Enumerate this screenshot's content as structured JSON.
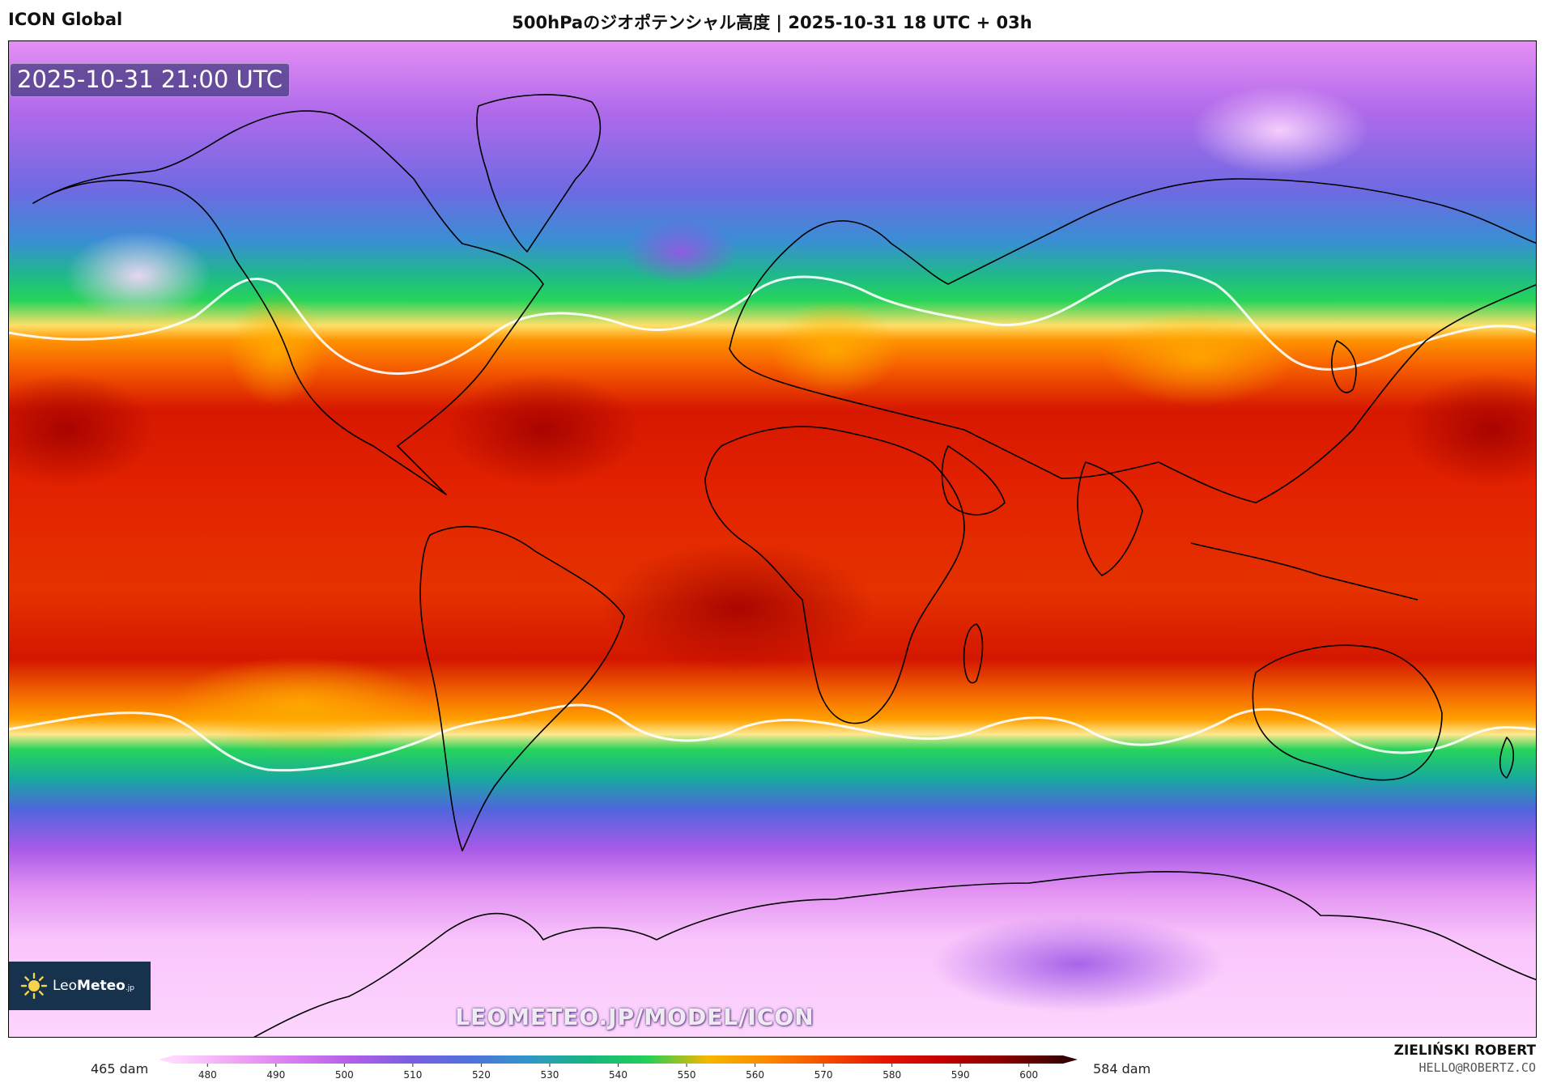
{
  "header": {
    "model_name": "ICON Global",
    "title": "500hPaのジオポテンシャル高度 | 2025-10-31 18 UTC + 03h"
  },
  "map": {
    "timestamp": "2025-10-31 21:00 UTC",
    "watermark": "LEOMETEO.JP/MODEL/ICON",
    "logo": {
      "brand_light": "Leo",
      "brand_bold": "Meteo",
      "brand_suffix": ".jp"
    }
  },
  "colorbar": {
    "min_label": "465 dam",
    "max_label": "584 dam",
    "ticks": [
      "480",
      "490",
      "500",
      "510",
      "520",
      "530",
      "540",
      "550",
      "560",
      "570",
      "580",
      "590",
      "600"
    ],
    "colors": [
      "#ffd8ff",
      "#f1a6f5",
      "#d97cf0",
      "#b35ee8",
      "#7a5ee0",
      "#4f72dc",
      "#3196c8",
      "#16b67e",
      "#23cf57",
      "#f4b800",
      "#fb8a00",
      "#f44d00",
      "#e51500",
      "#c20000",
      "#880000",
      "#3a0000"
    ]
  },
  "credit": {
    "name": "ZIELIŃSKI ROBERT",
    "email": "HELLO@ROBERTZ.CO"
  }
}
